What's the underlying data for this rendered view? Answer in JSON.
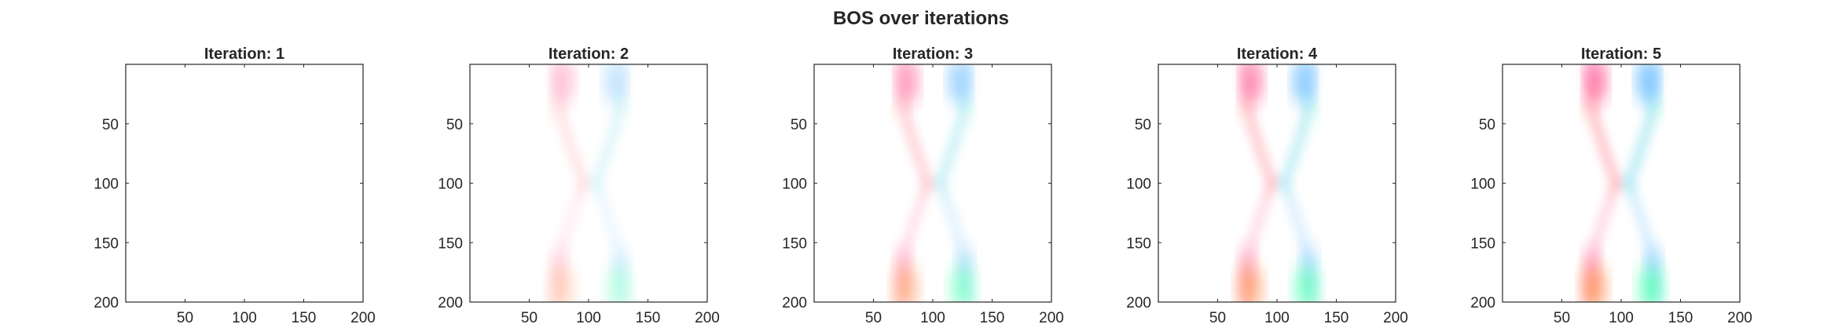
{
  "figure": {
    "title": "BOS over iterations"
  },
  "colors": {
    "axis": "#262626",
    "background": "#ffffff",
    "magenta": "#ff1f6e",
    "blue": "#1f9bff",
    "orange": "#ff6a1f",
    "green": "#1fff9e"
  },
  "chart_data": [
    {
      "type": "heatmap",
      "title": "Iteration: 1",
      "xlim": [
        0,
        200
      ],
      "ylim": [
        0,
        200
      ],
      "x_ticks": [
        50,
        100,
        150,
        200
      ],
      "y_ticks": [
        50,
        100,
        150,
        200
      ],
      "y_direction": "reversed",
      "intensity": 0.0
    },
    {
      "type": "heatmap",
      "title": "Iteration: 2",
      "xlim": [
        0,
        200
      ],
      "ylim": [
        0,
        200
      ],
      "x_ticks": [
        50,
        100,
        150,
        200
      ],
      "y_ticks": [
        50,
        100,
        150,
        200
      ],
      "y_direction": "reversed",
      "intensity": 0.45
    },
    {
      "type": "heatmap",
      "title": "Iteration: 3",
      "xlim": [
        0,
        200
      ],
      "ylim": [
        0,
        200
      ],
      "x_ticks": [
        50,
        100,
        150,
        200
      ],
      "y_ticks": [
        50,
        100,
        150,
        200
      ],
      "y_direction": "reversed",
      "intensity": 0.75
    },
    {
      "type": "heatmap",
      "title": "Iteration: 4",
      "xlim": [
        0,
        200
      ],
      "ylim": [
        0,
        200
      ],
      "x_ticks": [
        50,
        100,
        150,
        200
      ],
      "y_ticks": [
        50,
        100,
        150,
        200
      ],
      "y_direction": "reversed",
      "intensity": 0.9
    },
    {
      "type": "heatmap",
      "title": "Iteration: 5",
      "xlim": [
        0,
        200
      ],
      "ylim": [
        0,
        200
      ],
      "x_ticks": [
        50,
        100,
        150,
        200
      ],
      "y_ticks": [
        50,
        100,
        150,
        200
      ],
      "y_direction": "reversed",
      "intensity": 1.0
    }
  ]
}
